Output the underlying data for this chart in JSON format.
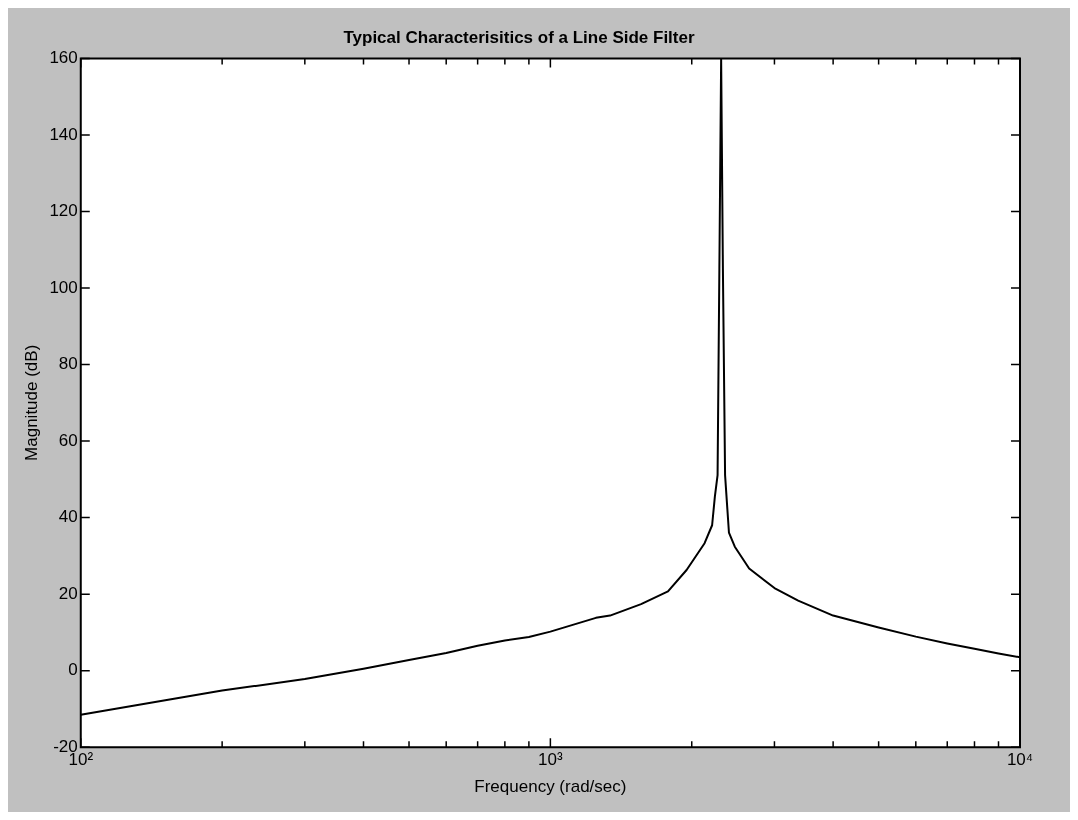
{
  "chart_data": {
    "type": "line",
    "title": "Typical Characterisitics of a Line Side Filter",
    "xlabel": "Frequency (rad/sec)",
    "ylabel": "Magnitude (dB)",
    "log": "x",
    "grid": false,
    "marker": "none",
    "line_style": "solid",
    "xlim": [
      100,
      10000
    ],
    "xticks": [
      {
        "value": 100,
        "label": "10²"
      },
      {
        "value": 200,
        "label": null
      },
      {
        "value": 300,
        "label": null
      },
      {
        "value": 400,
        "label": null
      },
      {
        "value": 500,
        "label": null
      },
      {
        "value": 600,
        "label": null
      },
      {
        "value": 700,
        "label": null
      },
      {
        "value": 800,
        "label": null
      },
      {
        "value": 900,
        "label": null
      },
      {
        "value": 1000,
        "label": "10³"
      },
      {
        "value": 2000,
        "label": null
      },
      {
        "value": 3000,
        "label": null
      },
      {
        "value": 4000,
        "label": null
      },
      {
        "value": 5000,
        "label": null
      },
      {
        "value": 6000,
        "label": null
      },
      {
        "value": 7000,
        "label": null
      },
      {
        "value": 8000,
        "label": null
      },
      {
        "value": 9000,
        "label": null
      },
      {
        "value": 10000,
        "label": "10⁴"
      }
    ],
    "ylim": [
      -20,
      160
    ],
    "yticks": [
      -20,
      0,
      20,
      40,
      60,
      80,
      100,
      120,
      140,
      160
    ],
    "x": [
      100,
      200,
      300,
      400,
      500,
      600,
      700,
      800,
      900,
      1000,
      1250,
      1340,
      1560,
      1780,
      1950,
      2130,
      2210,
      2240,
      2270,
      2290,
      2310,
      2330,
      2355,
      2400,
      2470,
      2650,
      3000,
      3370,
      4000,
      5000,
      6000,
      7000,
      8000,
      9000,
      10000
    ],
    "series": [
      {
        "color": "#000000",
        "values": [
          -11.5,
          -5.2,
          -2.2,
          0.5,
          2.8,
          4.6,
          6.5,
          7.9,
          8.8,
          10.2,
          13.8,
          14.4,
          17.4,
          20.7,
          26.3,
          33.3,
          38.0,
          45.5,
          51.1,
          105,
          160,
          105,
          51.1,
          36.1,
          32.4,
          26.7,
          21.6,
          18.3,
          14.4,
          11.3,
          8.9,
          7.1,
          5.7,
          4.5,
          3.5
        ]
      }
    ]
  }
}
